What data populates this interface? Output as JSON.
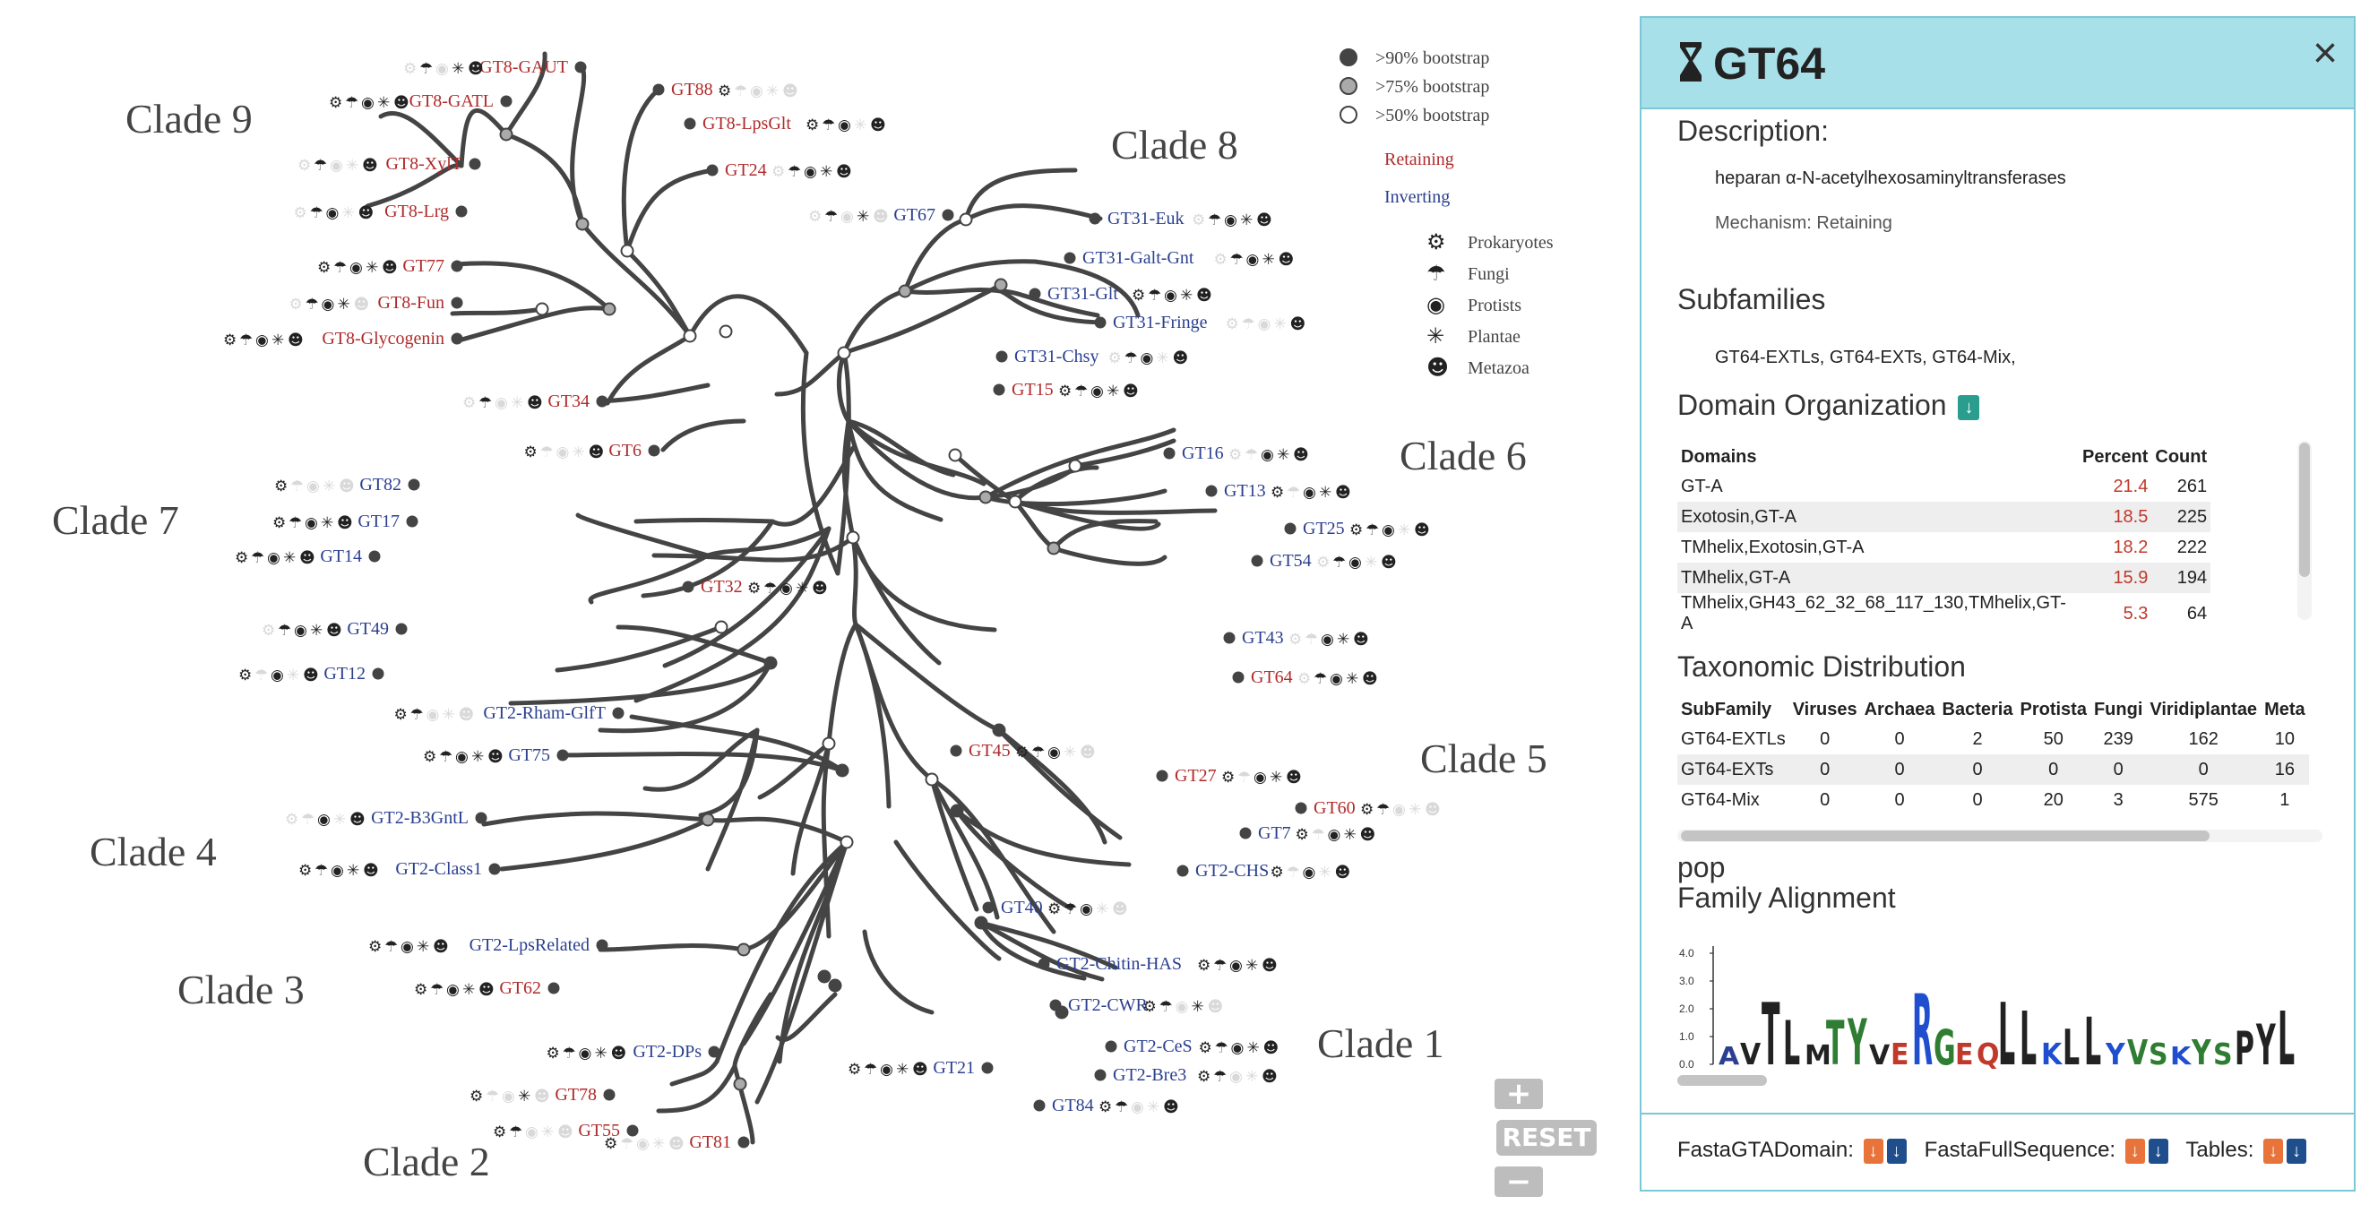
{
  "legend": {
    "bootstrap": [
      ">90% bootstrap",
      ">75% bootstrap",
      ">50% bootstrap"
    ],
    "mechanisms": [
      {
        "label": "Retaining",
        "color": "#b02a2a"
      },
      {
        "label": "Inverting",
        "color": "#2a3f8f"
      }
    ],
    "organisms": [
      {
        "label": "Prokaryotes",
        "icon": "prokaryote-icon"
      },
      {
        "label": "Fungi",
        "icon": "fungi-icon"
      },
      {
        "label": "Protists",
        "icon": "protist-icon"
      },
      {
        "label": "Plantae",
        "icon": "plant-icon"
      },
      {
        "label": "Metazoa",
        "icon": "metazoa-icon"
      }
    ]
  },
  "clades": [
    "Clade 9",
    "Clade 8",
    "Clade 7",
    "Clade 6",
    "Clade 5",
    "Clade 4",
    "Clade 3",
    "Clade 2",
    "Clade 1"
  ],
  "tree_leaves": [
    {
      "label": "GT8-GAUT",
      "mech": "retaining",
      "kingdoms": [
        0,
        1,
        0,
        1,
        1
      ]
    },
    {
      "label": "GT88",
      "mech": "retaining",
      "kingdoms": [
        1,
        0,
        0,
        0,
        0
      ]
    },
    {
      "label": "GT8-GATL",
      "mech": "retaining",
      "kingdoms": [
        1,
        1,
        1,
        1,
        1
      ]
    },
    {
      "label": "GT8-LpsGlt",
      "mech": "retaining",
      "kingdoms": [
        1,
        1,
        1,
        0,
        1
      ]
    },
    {
      "label": "GT8-XylT",
      "mech": "retaining",
      "kingdoms": [
        0,
        1,
        0,
        0,
        1
      ]
    },
    {
      "label": "GT24",
      "mech": "retaining",
      "kingdoms": [
        0,
        1,
        1,
        1,
        1
      ]
    },
    {
      "label": "GT8-Lrg",
      "mech": "retaining",
      "kingdoms": [
        0,
        1,
        1,
        0,
        1
      ]
    },
    {
      "label": "GT77",
      "mech": "retaining",
      "kingdoms": [
        1,
        1,
        1,
        1,
        1
      ]
    },
    {
      "label": "GT8-Fun",
      "mech": "retaining",
      "kingdoms": [
        0,
        1,
        1,
        1,
        0
      ]
    },
    {
      "label": "GT8-Glycogenin",
      "mech": "retaining",
      "kingdoms": [
        1,
        1,
        1,
        1,
        1
      ]
    },
    {
      "label": "GT34",
      "mech": "retaining",
      "kingdoms": [
        0,
        1,
        0,
        0,
        1
      ]
    },
    {
      "label": "GT6",
      "mech": "retaining",
      "kingdoms": [
        1,
        0,
        0,
        0,
        1
      ]
    },
    {
      "label": "GT67",
      "mech": "inverting",
      "kingdoms": [
        0,
        1,
        0,
        1,
        0
      ]
    },
    {
      "label": "GT31-Euk",
      "mech": "inverting",
      "kingdoms": [
        0,
        1,
        1,
        1,
        1
      ]
    },
    {
      "label": "GT31-Galt-Gnt",
      "mech": "inverting",
      "kingdoms": [
        0,
        1,
        1,
        1,
        1
      ]
    },
    {
      "label": "GT31-Glt",
      "mech": "inverting",
      "kingdoms": [
        1,
        1,
        1,
        1,
        1
      ]
    },
    {
      "label": "GT31-Fringe",
      "mech": "inverting",
      "kingdoms": [
        0,
        0,
        0,
        0,
        1
      ]
    },
    {
      "label": "GT31-Chsy",
      "mech": "inverting",
      "kingdoms": [
        0,
        1,
        1,
        0,
        1
      ]
    },
    {
      "label": "GT15",
      "mech": "retaining",
      "kingdoms": [
        1,
        1,
        1,
        1,
        1
      ]
    },
    {
      "label": "GT82",
      "mech": "inverting",
      "kingdoms": [
        1,
        0,
        0,
        0,
        0
      ]
    },
    {
      "label": "GT17",
      "mech": "inverting",
      "kingdoms": [
        1,
        1,
        1,
        1,
        1
      ]
    },
    {
      "label": "GT14",
      "mech": "inverting",
      "kingdoms": [
        1,
        1,
        1,
        1,
        1
      ]
    },
    {
      "label": "GT32",
      "mech": "retaining",
      "kingdoms": [
        1,
        1,
        1,
        1,
        1
      ]
    },
    {
      "label": "GT16",
      "mech": "inverting",
      "kingdoms": [
        0,
        0,
        1,
        1,
        1
      ]
    },
    {
      "label": "GT13",
      "mech": "inverting",
      "kingdoms": [
        1,
        0,
        1,
        1,
        1
      ]
    },
    {
      "label": "GT25",
      "mech": "inverting",
      "kingdoms": [
        1,
        1,
        1,
        0,
        1
      ]
    },
    {
      "label": "GT54",
      "mech": "inverting",
      "kingdoms": [
        0,
        1,
        1,
        0,
        1
      ]
    },
    {
      "label": "GT49",
      "mech": "inverting",
      "kingdoms": [
        0,
        1,
        1,
        1,
        1
      ]
    },
    {
      "label": "GT12",
      "mech": "inverting",
      "kingdoms": [
        1,
        0,
        1,
        0,
        1
      ]
    },
    {
      "label": "GT43",
      "mech": "inverting",
      "kingdoms": [
        0,
        0,
        1,
        1,
        1
      ]
    },
    {
      "label": "GT64",
      "mech": "retaining",
      "kingdoms": [
        0,
        1,
        1,
        1,
        1
      ]
    },
    {
      "label": "GT2-Rham-GlfT",
      "mech": "inverting",
      "kingdoms": [
        1,
        1,
        0,
        0,
        0
      ]
    },
    {
      "label": "GT75",
      "mech": "inverting",
      "kingdoms": [
        1,
        1,
        1,
        1,
        1
      ]
    },
    {
      "label": "GT45",
      "mech": "retaining",
      "kingdoms": [
        1,
        1,
        1,
        0,
        0
      ]
    },
    {
      "label": "GT27",
      "mech": "retaining",
      "kingdoms": [
        1,
        0,
        1,
        1,
        1
      ]
    },
    {
      "label": "GT60",
      "mech": "retaining",
      "kingdoms": [
        1,
        1,
        0,
        0,
        0
      ]
    },
    {
      "label": "GT2-B3GntL",
      "mech": "inverting",
      "kingdoms": [
        0,
        0,
        1,
        0,
        1
      ]
    },
    {
      "label": "GT7",
      "mech": "inverting",
      "kingdoms": [
        1,
        0,
        1,
        1,
        1
      ]
    },
    {
      "label": "GT2-Class1",
      "mech": "inverting",
      "kingdoms": [
        1,
        1,
        1,
        1,
        1
      ]
    },
    {
      "label": "GT2-CHS",
      "mech": "inverting",
      "kingdoms": [
        1,
        0,
        1,
        0,
        1
      ]
    },
    {
      "label": "GT40",
      "mech": "inverting",
      "kingdoms": [
        1,
        1,
        1,
        0,
        0
      ]
    },
    {
      "label": "GT2-LpsRelated",
      "mech": "inverting",
      "kingdoms": [
        1,
        1,
        1,
        1,
        1
      ]
    },
    {
      "label": "GT2-Chitin-HAS",
      "mech": "inverting",
      "kingdoms": [
        1,
        1,
        1,
        1,
        1
      ]
    },
    {
      "label": "GT62",
      "mech": "retaining",
      "kingdoms": [
        1,
        1,
        1,
        1,
        1
      ]
    },
    {
      "label": "GT2-CWR",
      "mech": "inverting",
      "kingdoms": [
        1,
        1,
        0,
        1,
        0
      ]
    },
    {
      "label": "GT2-DPs",
      "mech": "inverting",
      "kingdoms": [
        1,
        1,
        1,
        1,
        1
      ]
    },
    {
      "label": "GT2-CeS",
      "mech": "inverting",
      "kingdoms": [
        1,
        1,
        1,
        1,
        1
      ]
    },
    {
      "label": "GT21",
      "mech": "inverting",
      "kingdoms": [
        1,
        1,
        1,
        1,
        1
      ]
    },
    {
      "label": "GT2-Bre3",
      "mech": "inverting",
      "kingdoms": [
        1,
        1,
        0,
        0,
        1
      ]
    },
    {
      "label": "GT78",
      "mech": "retaining",
      "kingdoms": [
        1,
        0,
        0,
        1,
        0
      ]
    },
    {
      "label": "GT84",
      "mech": "inverting",
      "kingdoms": [
        1,
        1,
        0,
        0,
        1
      ]
    },
    {
      "label": "GT55",
      "mech": "retaining",
      "kingdoms": [
        1,
        1,
        0,
        0,
        0
      ]
    },
    {
      "label": "GT81",
      "mech": "retaining",
      "kingdoms": [
        1,
        0,
        0,
        0,
        0
      ]
    }
  ],
  "zoom": {
    "in": "+",
    "reset": "RESET",
    "out": "−"
  },
  "panel": {
    "title": "GT64",
    "close": "×",
    "description_heading": "Description:",
    "description": "heparan α-N-acetylhexosaminyltransferases",
    "mechanism": "Mechanism: Retaining",
    "subfamilies_heading": "Subfamilies",
    "subfamilies": "GT64-EXTLs, GT64-EXTs, GT64-Mix,",
    "domain_heading": "Domain Organization",
    "domain_columns": [
      "Domains",
      "Percent",
      "Count"
    ],
    "domain_rows": [
      [
        "GT-A",
        "21.4",
        "261"
      ],
      [
        "Exotosin,GT-A",
        "18.5",
        "225"
      ],
      [
        "TMhelix,Exotosin,GT-A",
        "18.2",
        "222"
      ],
      [
        "TMhelix,GT-A",
        "15.9",
        "194"
      ],
      [
        "TMhelix,GH43_62_32_68_117_130,TMhelix,GT-A",
        "5.3",
        "64"
      ]
    ],
    "taxo_heading": "Taxonomic Distribution",
    "taxo_columns": [
      "SubFamily",
      "Viruses",
      "Archaea",
      "Bacteria",
      "Protista",
      "Fungi",
      "Viridiplantae",
      "Meta"
    ],
    "taxo_rows": [
      [
        "GT64-EXTLs",
        "0",
        "0",
        "2",
        "50",
        "239",
        "162",
        "10"
      ],
      [
        "GT64-EXTs",
        "0",
        "0",
        "0",
        "0",
        "0",
        "0",
        "16"
      ],
      [
        "GT64-Mix",
        "0",
        "0",
        "0",
        "20",
        "3",
        "575",
        "1"
      ]
    ],
    "pop_label": "pop",
    "alignment_heading": "Family Alignment",
    "logo_y_ticks": [
      "4.0",
      "3.0",
      "2.0",
      "1.0",
      "0.0"
    ],
    "footer": {
      "fasta_domain": "FastaGTADomain:",
      "fasta_full": "FastaFullSequence:",
      "tables": "Tables:"
    }
  }
}
